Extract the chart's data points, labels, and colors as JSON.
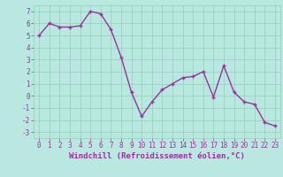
{
  "x": [
    0,
    1,
    2,
    3,
    4,
    5,
    6,
    7,
    8,
    9,
    10,
    11,
    12,
    13,
    14,
    15,
    16,
    17,
    18,
    19,
    20,
    21,
    22,
    23
  ],
  "y": [
    5.0,
    6.0,
    5.7,
    5.7,
    5.8,
    7.0,
    6.8,
    5.5,
    3.2,
    0.3,
    -1.7,
    -0.5,
    0.5,
    1.0,
    1.5,
    1.6,
    2.0,
    -0.1,
    2.5,
    0.3,
    -0.5,
    -0.7,
    -2.2,
    -2.5
  ],
  "line_color": "#993399",
  "marker": "+",
  "bg_color": "#b8e8e0",
  "grid_color": "#99ccbb",
  "xlabel": "Windchill (Refroidissement éolien,°C)",
  "ylabel": "",
  "title": "",
  "xlim": [
    -0.5,
    23.5
  ],
  "ylim": [
    -3.5,
    7.5
  ],
  "yticks": [
    -3,
    -2,
    -1,
    0,
    1,
    2,
    3,
    4,
    5,
    6,
    7
  ],
  "xticks": [
    0,
    1,
    2,
    3,
    4,
    5,
    6,
    7,
    8,
    9,
    10,
    11,
    12,
    13,
    14,
    15,
    16,
    17,
    18,
    19,
    20,
    21,
    22,
    23
  ],
  "xtick_labels": [
    "0",
    "1",
    "2",
    "3",
    "4",
    "5",
    "6",
    "7",
    "8",
    "9",
    "10",
    "11",
    "12",
    "13",
    "14",
    "15",
    "16",
    "17",
    "18",
    "19",
    "20",
    "21",
    "22",
    "23"
  ],
  "font_color": "#993399",
  "tick_fontsize": 5.5,
  "xlabel_fontsize": 6.5,
  "linewidth": 1.0,
  "markersize": 3.5,
  "markeredgewidth": 1.0
}
